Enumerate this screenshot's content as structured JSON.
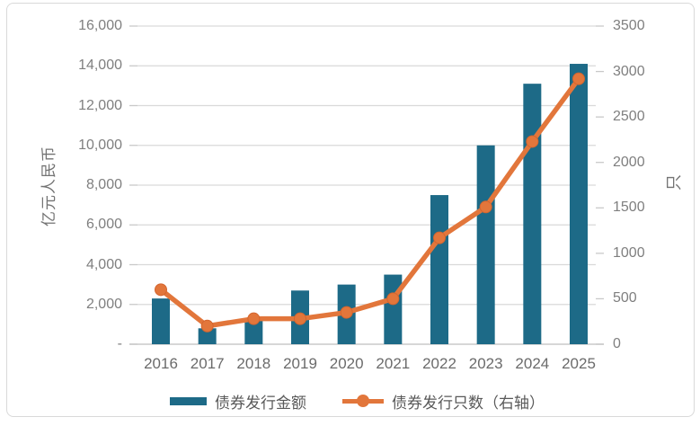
{
  "chart_data": {
    "type": "bar",
    "subtype": "combo-bar-line",
    "title": "",
    "categories": [
      "2016",
      "2017",
      "2018",
      "2019",
      "2020",
      "2021",
      "2022",
      "2023",
      "2024",
      "2025"
    ],
    "series": [
      {
        "name": "债券发行金额",
        "type": "bar",
        "axis": "left",
        "color": "#1d6a87",
        "values": [
          2300,
          800,
          1200,
          2700,
          3000,
          3500,
          7500,
          10000,
          13100,
          14100
        ]
      },
      {
        "name": "债券发行只数（右轴）",
        "type": "line",
        "axis": "right",
        "color": "#e2763b",
        "marker_stroke": "#d4652e",
        "values": [
          600,
          200,
          280,
          280,
          350,
          500,
          1170,
          1510,
          2230,
          2920
        ]
      }
    ],
    "left_axis": {
      "title": "亿元人民币",
      "min": 0,
      "max": 16000,
      "step": 2000,
      "tick_labels_bottom_to_top": [
        "-",
        "2,000",
        "4,000",
        "6,000",
        "8,000",
        "10,000",
        "12,000",
        "14,000",
        "16,000"
      ]
    },
    "right_axis": {
      "title": "只",
      "min": 0,
      "max": 3500,
      "step": 500,
      "tick_labels_bottom_to_top": [
        "0",
        "500",
        "1000",
        "1500",
        "2000",
        "2500",
        "3000",
        "3500"
      ]
    },
    "grid": true,
    "legend_position": "bottom",
    "colors": {
      "gridline": "#d9d9d9",
      "axis_line": "#bfbfbf",
      "tick_mark": "#c9c9c9",
      "axis_text": "#7f7f7f",
      "x_text": "#6b6b6b",
      "legend_text": "#595959",
      "frame_border": "#d9d9d9",
      "background": "#ffffff"
    }
  }
}
